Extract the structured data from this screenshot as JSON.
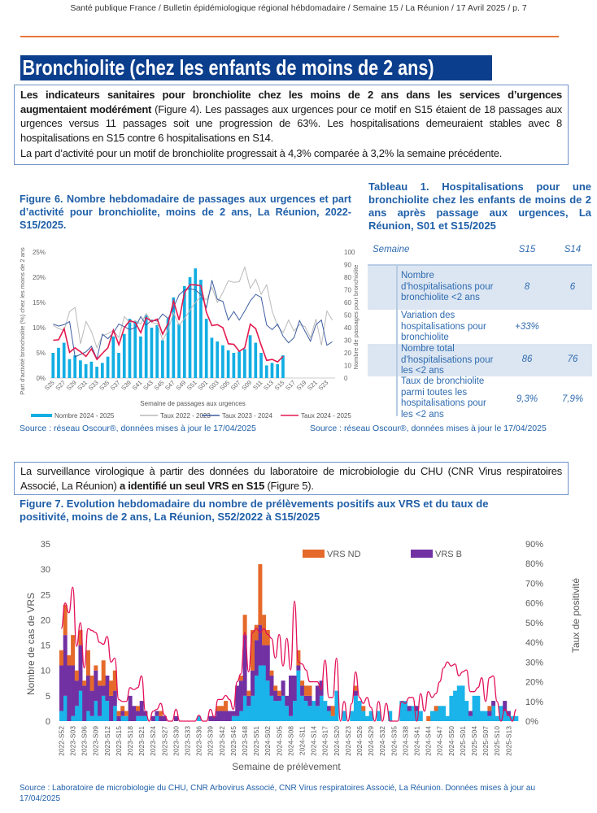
{
  "header": "Santé publique France / Bulletin épidémiologique régional hébdomadaire / Semaine 15 / La Réunion / 17 Avril 2025 / p. 7",
  "section_title": "Bronchiolite (chez les enfants de moins de 2 ans)",
  "intro": {
    "bold": "Les indicateurs sanitaires pour bronchiolite chez les moins de 2 ans dans les services d’urgences augmentaient modérément",
    "rest": " (Figure 4). Les passages aux urgences pour ce motif en S15 étaient de 18 passages aux urgences versus 11 passages soit une progression de 63%. Les hospitalisations demeuraient stables avec 8 hospitalisations en S15 contre 6 hospitalisations en S14.",
    "para2": "La part d’activité pour un motif de bronchiolite progressait à 4,3% comparée à 3,2% la semaine précédente."
  },
  "figure6": {
    "title": "Figure 6. Nombre hebdomadaire de passages aux urgences et part d’activité pour bronchiolite, moins de 2 ans, La Réunion, 2022-S15/2025.",
    "source": "Source : réseau Oscour®, données mises à jour le 17/04/2025"
  },
  "table1": {
    "title": "Tableau 1. Hospitalisations pour une bronchiolite chez les enfants de moins de 2 ans après passage aux urgences, La Réunion, S01 et S15/2025",
    "header": {
      "label": "Semaine",
      "c1": "S15",
      "c2": "S14"
    },
    "rows": [
      {
        "label": "Nombre d'hospitalisations pour bronchiolite <2 ans",
        "c1": "8",
        "c2": "6"
      },
      {
        "label": "Variation des hospitalisations pour bronchiolite",
        "c1": "+33%",
        "c2": ""
      },
      {
        "label": "Nombre total d'hospitalisations pour les <2 ans",
        "c1": "86",
        "c2": "76"
      },
      {
        "label": "Taux de bronchiolite parmi toutes les hospitalisations pour les <2 ans",
        "c1": "9,3%",
        "c2": "7,9%"
      }
    ],
    "source": "Source : réseau Oscour®, données mises à jour le 17/04/2025"
  },
  "virology": {
    "text": "La surveillance virologique à partir des données du laboratoire de microbiologie du CHU (CNR Virus respiratoires Associé, La Réunion) ",
    "bold": "a identifié un seul VRS en S15",
    "end": " (Figure 5)."
  },
  "figure7": {
    "title": "Figure 7. Evolution hebdomadaire du nombre de prélèvements positifs aux VRS et du taux de positivité, moins de 2 ans, La Réunion, S52/2022 à S15/2025",
    "source": "Source : Laboratoire de microbiologie du CHU, CNR Arbovirus Associé, CNR Virus respiratoires Associé, La Réunion. Données mises à jour au 17/04/2025"
  },
  "chart_data": [
    {
      "type": "bar+line",
      "xlabel": "Semaine de passages aux urgences",
      "ylabel_left": "Part d'activité bronchiolite (%) chez les moins de 2 ans",
      "ylabel_right": "Nombre de passages pour bronchiolite",
      "ylim_left": [
        0,
        25
      ],
      "ylim_right": [
        0,
        100
      ],
      "y_ticks_left": [
        "0%",
        "5%",
        "10%",
        "15%",
        "20%",
        "25%"
      ],
      "y_ticks_right": [
        "0",
        "10",
        "20",
        "30",
        "40",
        "50",
        "60",
        "70",
        "80",
        "90",
        "100"
      ],
      "x_tick_labels": [
        "S25",
        "S27",
        "S29",
        "S31",
        "S33",
        "S35",
        "S37",
        "S39",
        "S41",
        "S43",
        "S45",
        "S47",
        "S49",
        "S51",
        "S01",
        "S03",
        "S05",
        "S07",
        "S09",
        "S11",
        "S13",
        "S15",
        "S17",
        "S19",
        "S21",
        "S23"
      ],
      "legend_position": "bottom",
      "series": [
        {
          "name": "Nombre 2024 - 2025",
          "kind": "bar",
          "axis": "right",
          "color": "#12aee3",
          "values": [
            20,
            24,
            28,
            15,
            18,
            14,
            11,
            13,
            9,
            12,
            17,
            33,
            20,
            35,
            47,
            45,
            33,
            50,
            40,
            42,
            30,
            47,
            64,
            43,
            73,
            80,
            87,
            78,
            47,
            32,
            29,
            26,
            22,
            20,
            21,
            23,
            34,
            28,
            20,
            10,
            12,
            11,
            18
          ]
        },
        {
          "name": "Taux 2022 - 2023",
          "kind": "line",
          "axis": "left",
          "color": "#b9b9b9",
          "values": [
            10.5,
            9.8,
            9.5,
            13.2,
            14,
            6.8,
            11.2,
            9.2,
            6,
            8.4,
            8.8,
            9.5,
            8,
            12.2,
            11,
            11.4,
            10.7,
            12.8,
            11,
            10.8,
            7.5,
            9.5,
            13,
            10.5,
            11.8,
            13.5,
            15,
            16.3,
            15.5,
            18,
            15,
            17,
            19.3,
            19,
            19.1,
            22,
            17.8,
            19.6,
            16.6,
            18.5,
            13.3,
            10.3,
            9,
            11.5,
            9.3,
            10.6,
            10.2,
            8,
            11.7,
            6.5,
            13.3,
            11.5
          ]
        },
        {
          "name": "Taux 2023 - 2024",
          "kind": "line",
          "axis": "left",
          "color": "#3d5da0",
          "values": [
            10.7,
            10.3,
            10.6,
            11.2,
            4.2,
            4.7,
            5.2,
            6.3,
            3.8,
            8.7,
            7.8,
            9,
            10.7,
            10.2,
            9.6,
            10,
            12.2,
            10.5,
            11.5,
            11.3,
            12.7,
            11.8,
            14,
            16.5,
            17.5,
            17.7,
            17.5,
            16.5,
            14,
            19.4,
            15.6,
            15.2,
            11.5,
            13.2,
            11.5,
            13.3,
            15.3,
            16.6,
            16,
            10.5,
            9.6,
            10.7,
            8.3,
            7,
            8,
            11.4,
            9.3,
            7.3,
            10.6,
            11.5,
            6.5,
            7.2
          ]
        },
        {
          "name": "Taux 2024 - 2025",
          "kind": "line",
          "axis": "left",
          "color": "#e2194f",
          "values": [
            7.5,
            7.6,
            9.8,
            5.1,
            6,
            5.2,
            4.3,
            5.8,
            3.7,
            4.9,
            6,
            9.5,
            6.6,
            10,
            11.4,
            11,
            9,
            12,
            11.2,
            11.7,
            8.7,
            10.8,
            15.3,
            11.5,
            17,
            18.5,
            18.5,
            18.3,
            13,
            10.4,
            10.6,
            10,
            6.8,
            6.7,
            5.3,
            6,
            10.7,
            9.8,
            6.5,
            3.5,
            3.7,
            3.2,
            4.3
          ]
        }
      ]
    },
    {
      "type": "stacked-bar+line",
      "xlabel": "Semaine de prélèvement",
      "ylabel_left": "Nombre de cas de VRS",
      "ylabel_right": "Taux de positivité",
      "ylim_left": [
        0,
        35
      ],
      "ylim_right": [
        0,
        90
      ],
      "y_ticks_left": [
        "0",
        "5",
        "10",
        "15",
        "20",
        "25",
        "30",
        "35"
      ],
      "y_ticks_right": [
        "0%",
        "10%",
        "20%",
        "30%",
        "40%",
        "50%",
        "60%",
        "70%",
        "80%",
        "90%"
      ],
      "x_tick_labels": [
        "2022-S52",
        "2023-S03",
        "2023-S06",
        "2023-S09",
        "2023-S12",
        "2023-S15",
        "2023-S18",
        "2023-S21",
        "2023-S24",
        "2023-S27",
        "2023-S30",
        "2023-S33",
        "2023-S36",
        "2023-S39",
        "2023-S42",
        "2023-S45",
        "2023-S48",
        "2023-S51",
        "2024-S02",
        "2024-S05",
        "2024-S08",
        "2024-S11",
        "2024-S14",
        "2024-S17",
        "2024-S20",
        "2024-S23",
        "2024-S26",
        "2024-S29",
        "2024-S32",
        "2024-S35",
        "2024-S38",
        "2024-S41",
        "2024-S44",
        "2024-S47",
        "2024-S50",
        "2025-S01",
        "2025-S04",
        "2025-S07",
        "2025-S10",
        "2025-S13"
      ],
      "legend_position": "top",
      "series": [
        {
          "kind": "bar",
          "color": "#1ab3ea",
          "values": [
            2,
            5,
            0,
            1,
            3,
            6,
            0,
            2,
            1,
            4,
            1,
            5,
            4,
            0,
            3,
            0,
            1,
            1,
            0,
            0,
            1,
            1,
            1,
            0,
            0,
            1,
            0,
            0,
            0,
            0,
            0,
            0,
            0,
            0,
            0,
            0,
            1,
            0,
            0,
            0,
            0,
            0,
            0,
            0,
            0,
            1,
            1,
            2,
            5,
            3,
            5,
            9,
            11,
            11,
            8,
            5,
            4,
            4,
            5,
            3,
            1,
            4,
            10,
            5,
            4,
            3,
            4,
            3,
            5,
            4,
            2,
            1,
            6,
            0,
            2,
            0,
            2,
            5,
            4,
            2,
            1,
            2,
            0,
            2,
            0,
            0,
            2,
            0,
            0,
            4,
            4,
            2,
            3,
            2,
            2,
            0,
            0,
            2,
            2,
            3,
            3,
            1,
            5,
            6,
            7,
            7,
            4,
            1,
            5,
            5,
            2,
            2,
            1,
            3,
            1,
            3,
            2,
            1,
            1,
            1
          ]
        },
        {
          "name": "VRS B",
          "kind": "bar",
          "color": "#7231a3",
          "values": [
            9,
            12,
            11,
            10,
            5,
            9,
            7,
            7,
            5,
            6,
            6,
            2,
            5,
            5,
            3,
            1,
            1,
            0,
            5,
            3,
            1,
            3,
            1,
            0,
            1,
            1,
            1,
            1,
            0,
            0,
            1,
            0,
            0,
            0,
            0,
            0,
            0,
            0,
            0,
            1,
            1,
            2,
            2,
            2,
            2,
            1,
            6,
            6,
            12,
            2,
            5,
            7,
            8,
            4,
            7,
            4,
            2,
            1,
            3,
            2,
            8,
            5,
            1,
            2,
            1,
            2,
            0,
            4,
            3,
            0,
            1,
            0,
            0,
            0,
            0,
            0,
            0,
            1,
            0,
            0,
            0,
            0,
            0,
            0,
            0,
            0,
            0,
            0,
            0,
            0,
            0,
            1,
            0,
            1,
            0,
            0,
            0,
            0,
            0,
            0,
            0,
            0,
            0,
            0,
            0,
            0,
            0,
            1,
            0,
            0,
            0,
            0,
            1,
            1,
            0,
            0,
            2,
            1,
            0,
            0
          ]
        },
        {
          "name": "VRS ND",
          "kind": "bar",
          "color": "#e4692a",
          "values": [
            3,
            6,
            2,
            6,
            2,
            3,
            1,
            5,
            3,
            1,
            1,
            5,
            0,
            3,
            4,
            1,
            1,
            1,
            0,
            0,
            1,
            0,
            0,
            0,
            0,
            0,
            1,
            0,
            0,
            0,
            0,
            0,
            0,
            0,
            0,
            0,
            0,
            0,
            0,
            0,
            0,
            1,
            1,
            2,
            0,
            0,
            0,
            1,
            4,
            1,
            8,
            3,
            12,
            6,
            3,
            1,
            1,
            1,
            0,
            0,
            0,
            0,
            3,
            1,
            2,
            2,
            0,
            0,
            0,
            0,
            0,
            2,
            0,
            0,
            0,
            0,
            0,
            1,
            0,
            1,
            0,
            0,
            0,
            0,
            0,
            0,
            0,
            0,
            0,
            0,
            0,
            0,
            0,
            0,
            0,
            0,
            1,
            0,
            1,
            0,
            0,
            0,
            0,
            0,
            0,
            0,
            0,
            0,
            0,
            0,
            0,
            0,
            1,
            0,
            0,
            0,
            0,
            0,
            0,
            0
          ]
        },
        {
          "kind": "line",
          "axis": "right",
          "unit": "%",
          "color": "#e3105a",
          "values": [
            47,
            60,
            55,
            68,
            38,
            50,
            27,
            47,
            46,
            45,
            40,
            39,
            43,
            30,
            32,
            11,
            10,
            10,
            17,
            16,
            17,
            23,
            5,
            0,
            5,
            6,
            9,
            3,
            0,
            0,
            6,
            0,
            0,
            0,
            0,
            0,
            3,
            0,
            0,
            6,
            2,
            11,
            11,
            13,
            11,
            6,
            20,
            24,
            45,
            25,
            45,
            47,
            45,
            47,
            44,
            42,
            32,
            44,
            28,
            42,
            26,
            61,
            30,
            29,
            26,
            20,
            20,
            20,
            16,
            31,
            12,
            12,
            32,
            0,
            10,
            0,
            9,
            25,
            12,
            9,
            12,
            7,
            0,
            10,
            0,
            9,
            0,
            0,
            0,
            10,
            9,
            12,
            12,
            0,
            14,
            5,
            15,
            12,
            14,
            20,
            27,
            30,
            28,
            29,
            23,
            25,
            26,
            15,
            15,
            17,
            22,
            10,
            22,
            23,
            10,
            0,
            6,
            3,
            0,
            6
          ]
        }
      ]
    }
  ]
}
